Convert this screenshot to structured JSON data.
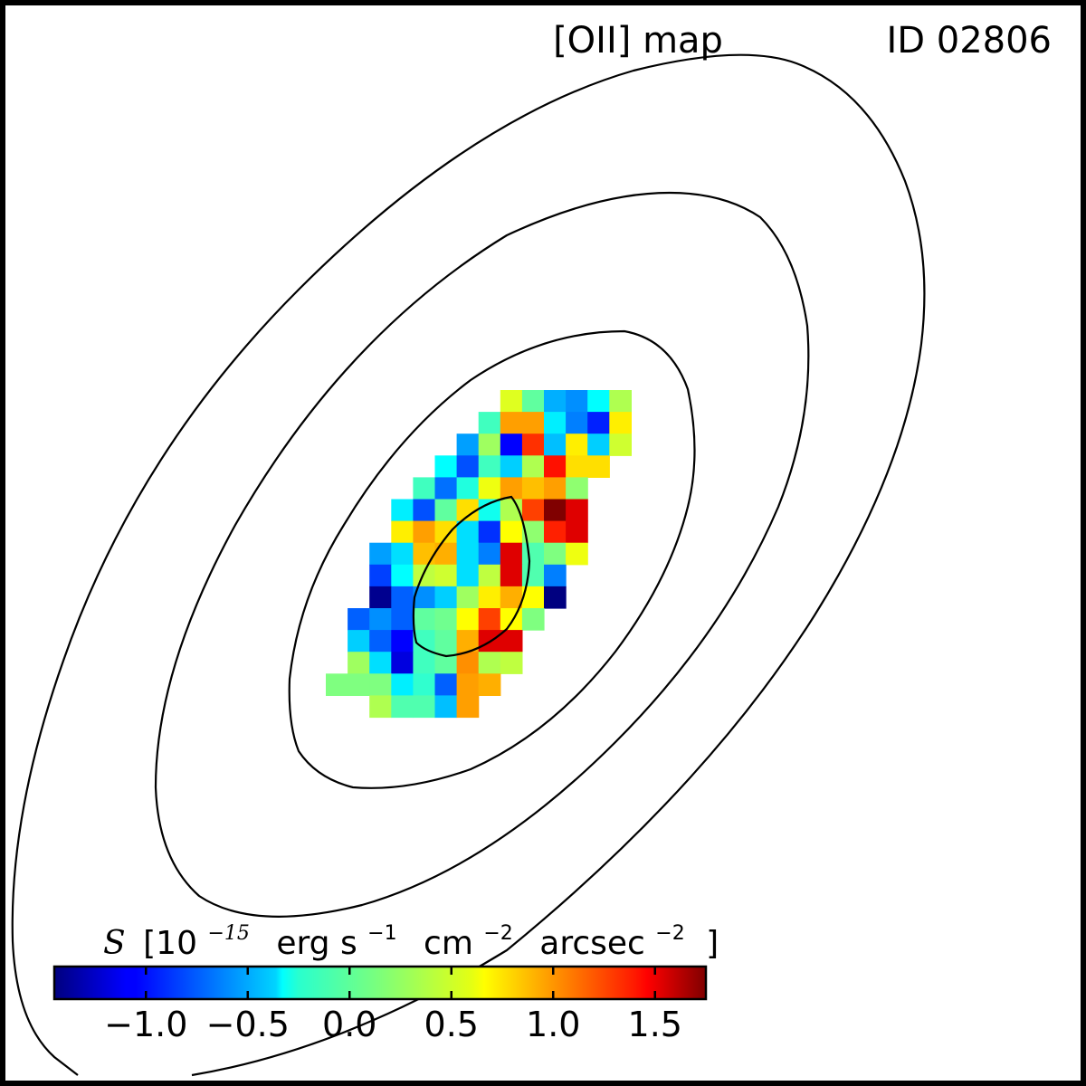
{
  "chart_data": {
    "type": "heatmap",
    "title_left": "[OII] map",
    "title_right": "ID 02806",
    "colorbar": {
      "label_symbol": "S",
      "label_parts": [
        "[10",
        "−15",
        "erg s",
        "−1",
        "cm",
        "−2",
        "arcsec",
        "−2",
        "]"
      ],
      "colormap": "jet",
      "vmin": -1.45,
      "vmax": 1.75,
      "ticks": [
        -1.0,
        -0.5,
        0.0,
        0.5,
        1.0,
        1.5
      ],
      "tick_labels": [
        "−1.0",
        "−0.5",
        "0.0",
        "0.5",
        "1.0",
        "1.5"
      ],
      "orientation": "horizontal",
      "placement": "bottom-left"
    },
    "grid": {
      "row_start": 0,
      "rows": [
        {
          "start": 8,
          "values": [
            0.45,
            0.05,
            -0.5,
            -0.6,
            -0.25,
            0.3
          ]
        },
        {
          "start": 7,
          "values": [
            -0.05,
            0.85,
            0.85,
            -0.3,
            -0.65,
            -0.95,
            0.6
          ]
        },
        {
          "start": 6,
          "values": [
            -0.55,
            0.25,
            -1.05,
            1.2,
            -0.45,
            0.6,
            -0.4,
            0.4
          ]
        },
        {
          "start": 5,
          "values": [
            -0.25,
            -0.8,
            -0.05,
            -0.4,
            0.3,
            1.3,
            0.65,
            0.65
          ]
        },
        {
          "start": 4,
          "values": [
            -0.05,
            -0.7,
            -0.15,
            0.5,
            0.85,
            0.75,
            0.85,
            0.2
          ]
        },
        {
          "start": 3,
          "values": [
            -0.3,
            -0.8,
            0.05,
            0.65,
            -0.2,
            0.3,
            1.15,
            1.75,
            1.45
          ]
        },
        {
          "start": 3,
          "values": [
            0.6,
            0.85,
            0.65,
            -0.35,
            -0.9,
            0.55,
            0.2,
            1.25,
            1.45
          ]
        },
        {
          "start": 2,
          "values": [
            -0.55,
            -0.35,
            0.75,
            0.8,
            -0.35,
            -0.65,
            1.45,
            0.0,
            0.15,
            0.5
          ]
        },
        {
          "start": 2,
          "values": [
            -0.85,
            -0.25,
            0.35,
            0.4,
            -0.35,
            0.35,
            1.45,
            0.0,
            -0.65
          ]
        },
        {
          "start": 2,
          "values": [
            -1.4,
            -0.75,
            -0.6,
            -0.4,
            0.25,
            0.6,
            0.8,
            0.55,
            -1.45
          ]
        },
        {
          "start": 1,
          "values": [
            -0.75,
            -0.6,
            -0.75,
            0.05,
            0.1,
            0.55,
            1.15,
            0.55,
            0.15
          ]
        },
        {
          "start": 1,
          "values": [
            -0.4,
            -0.75,
            -1.05,
            -0.05,
            0.05,
            0.8,
            1.45,
            1.45
          ]
        },
        {
          "start": 1,
          "values": [
            0.25,
            -0.35,
            -1.15,
            -0.05,
            0.05,
            0.9,
            0.3,
            0.35
          ]
        },
        {
          "start": 0,
          "values": [
            0.15,
            0.15,
            0.15,
            -0.3,
            -0.1,
            -0.75,
            0.85,
            0.8
          ]
        },
        {
          "start": 2,
          "values": [
            0.3,
            0.0,
            0.0,
            -0.45,
            0.85
          ]
        }
      ]
    },
    "contours": 4
  }
}
